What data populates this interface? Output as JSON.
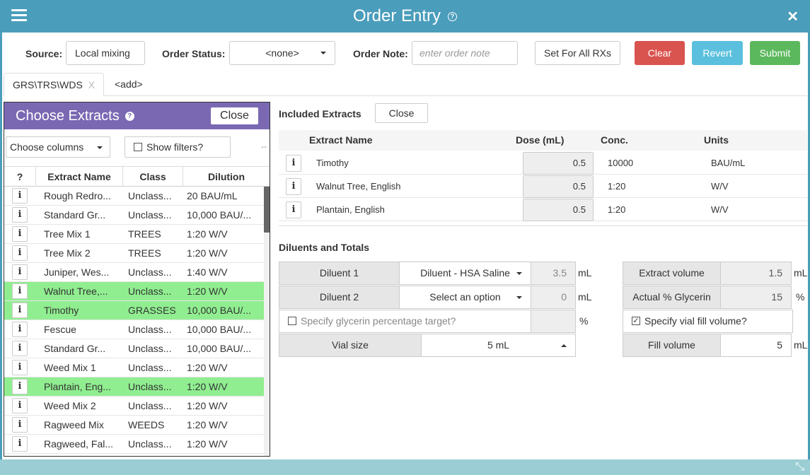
{
  "window": {
    "title": "Order Entry"
  },
  "toolbar": {
    "source_label": "Source:",
    "source_value": "Local mixing",
    "status_label": "Order Status:",
    "status_value": "<none>",
    "note_label": "Order Note:",
    "note_placeholder": "enter order note",
    "set_all_label": "Set For All RXs",
    "clear_label": "Clear",
    "revert_label": "Revert",
    "submit_label": "Submit"
  },
  "tabs": [
    {
      "label": "GRS\\TRS\\WDS",
      "close": "X"
    },
    {
      "label": "<add>"
    }
  ],
  "chooser": {
    "title": "Choose Extracts",
    "close_label": "Close",
    "columns_label": "Choose columns",
    "filters_label": "Show filters?",
    "headers": {
      "help": "?",
      "name": "Extract Name",
      "class": "Class",
      "dilution": "Dilution"
    },
    "rows": [
      {
        "name": "Rough Redro...",
        "class": "Unclass...",
        "dilution": "20 BAU/mL",
        "selected": false
      },
      {
        "name": "Standard Gr...",
        "class": "Unclass...",
        "dilution": "10,000 BAU/...",
        "selected": false
      },
      {
        "name": "Tree Mix 1",
        "class": "TREES",
        "dilution": "1:20 W/V",
        "selected": false
      },
      {
        "name": "Tree Mix 2",
        "class": "TREES",
        "dilution": "1:20 W/V",
        "selected": false
      },
      {
        "name": "Juniper, Wes...",
        "class": "Unclass...",
        "dilution": "1:40 W/V",
        "selected": false
      },
      {
        "name": "Walnut Tree,...",
        "class": "Unclass...",
        "dilution": "1:20 W/V",
        "selected": true
      },
      {
        "name": "Timothy",
        "class": "GRASSES",
        "dilution": "10,000 BAU/...",
        "selected": true
      },
      {
        "name": "Fescue",
        "class": "Unclass...",
        "dilution": "10,000 BAU/...",
        "selected": false
      },
      {
        "name": "Standard Gr...",
        "class": "Unclass...",
        "dilution": "10,000 BAU/...",
        "selected": false
      },
      {
        "name": "Weed Mix 1",
        "class": "Unclass...",
        "dilution": "1:20 W/V",
        "selected": false
      },
      {
        "name": "Plantain, Eng...",
        "class": "Unclass...",
        "dilution": "1:20 W/V",
        "selected": true
      },
      {
        "name": "Weed Mix 2",
        "class": "Unclass...",
        "dilution": "1:20 W/V",
        "selected": false
      },
      {
        "name": "Ragweed Mix",
        "class": "WEEDS",
        "dilution": "1:20 W/V",
        "selected": false
      },
      {
        "name": "Ragweed, Fal...",
        "class": "Unclass...",
        "dilution": "1:20 W/V",
        "selected": false
      }
    ]
  },
  "included": {
    "title": "Included Extracts",
    "close_label": "Close",
    "headers": {
      "name": "Extract Name",
      "dose": "Dose (mL)",
      "conc": "Conc.",
      "units": "Units"
    },
    "rows": [
      {
        "name": "Timothy",
        "dose": "0.5",
        "conc": "10000",
        "units": "BAU/mL"
      },
      {
        "name": "Walnut Tree, English",
        "dose": "0.5",
        "conc": "1:20",
        "units": "W/V"
      },
      {
        "name": "Plantain, English",
        "dose": "0.5",
        "conc": "1:20",
        "units": "W/V"
      }
    ]
  },
  "totals": {
    "title": "Diluents and Totals",
    "diluent1_label": "Diluent 1",
    "diluent1_value": "Diluent - HSA Saline",
    "diluent1_amount": "3.5",
    "diluent2_label": "Diluent 2",
    "diluent2_value": "Select an option",
    "diluent2_amount": "0",
    "ml_unit": "mL",
    "pct_unit": "%",
    "glycerin_target_label": "Specify glycerin percentage target?",
    "vial_size_label": "Vial size",
    "vial_size_value": "5 mL",
    "extract_volume_label": "Extract volume",
    "extract_volume_value": "1.5",
    "actual_glycerin_label": "Actual % Glycerin",
    "actual_glycerin_value": "15",
    "fill_volume_check_label": "Specify vial fill volume?",
    "fill_volume_label": "Fill volume",
    "fill_volume_value": "5"
  },
  "colors": {
    "header": "#4a9dbb",
    "chooser_header": "#7a68b3",
    "selected_row": "#90ee90",
    "clear": "#d9534f",
    "revert": "#5bc0de",
    "submit": "#5cb85c"
  },
  "icons": [
    "hamburger-icon",
    "help-icon",
    "close-icon",
    "caret-down-icon",
    "info-icon",
    "expand-icon",
    "resize-icon",
    "checkbox-icon"
  ]
}
